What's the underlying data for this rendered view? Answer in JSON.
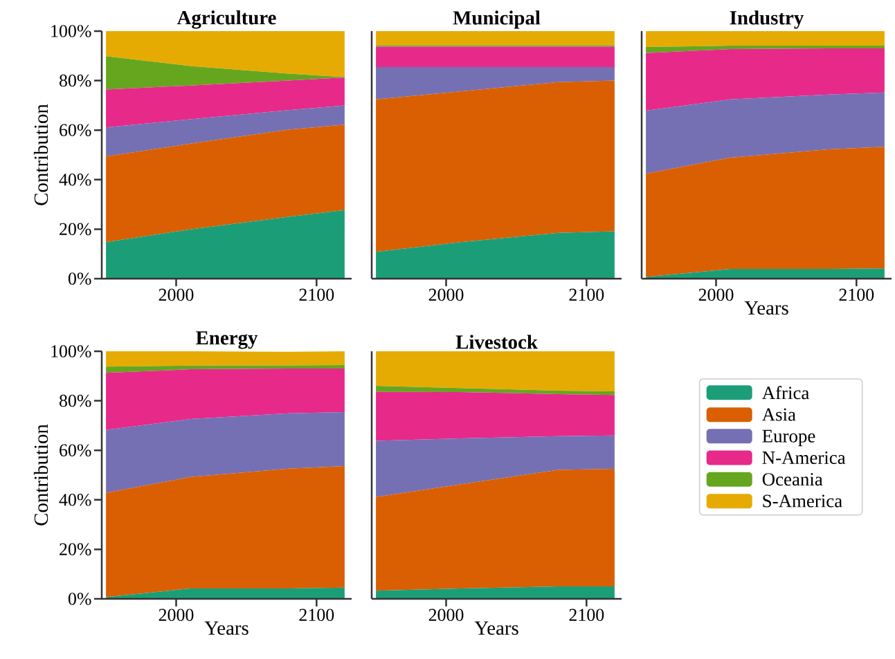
{
  "chart_data": [
    {
      "type": "area",
      "title": "Agriculture",
      "ylabel": "Contribution",
      "stacked": true,
      "x": [
        1950,
        2010,
        2080,
        2120
      ],
      "xlim": [
        1947,
        2125
      ],
      "xticks": [
        2000,
        2100
      ],
      "ylim": [
        0,
        100
      ],
      "yticks": [
        {
          "value": 0,
          "label": "0%"
        },
        {
          "value": 20,
          "label": "20%"
        },
        {
          "value": 40,
          "label": "40%"
        },
        {
          "value": 60,
          "label": "60%"
        },
        {
          "value": 80,
          "label": "80%"
        },
        {
          "value": 100,
          "label": "100%"
        }
      ],
      "series": [
        {
          "color": "#1b9e77",
          "values": [
            14.7,
            19.9,
            25.0,
            27.7
          ]
        },
        {
          "color": "#d95f02",
          "values": [
            34.7,
            34.6,
            35.2,
            34.5
          ]
        },
        {
          "color": "#7570b3",
          "values": [
            11.7,
            9.9,
            7.9,
            7.8
          ]
        },
        {
          "color": "#e7298a",
          "values": [
            15.3,
            13.6,
            11.9,
            11.3
          ]
        },
        {
          "color": "#66a61e",
          "values": [
            13.5,
            7.9,
            2.8,
            0.1
          ]
        },
        {
          "color": "#e6ab02",
          "values": [
            10.1,
            14.1,
            17.2,
            18.6
          ]
        }
      ]
    },
    {
      "type": "area",
      "title": "Municipal",
      "stacked": true,
      "tick_labels": "x",
      "x": [
        1950,
        2010,
        2080,
        2120
      ],
      "xlim": [
        1947,
        2125
      ],
      "xticks": [
        2000,
        2100
      ],
      "ylim": [
        0,
        100
      ],
      "series": [
        {
          "color": "#1b9e77",
          "values": [
            10.8,
            14.7,
            18.5,
            19.1
          ]
        },
        {
          "color": "#d95f02",
          "values": [
            61.6,
            60.9,
            60.9,
            60.9
          ]
        },
        {
          "color": "#7570b3",
          "values": [
            13.1,
            9.9,
            6.1,
            5.5
          ]
        },
        {
          "color": "#e7298a",
          "values": [
            8.2,
            8.2,
            8.2,
            8.2
          ]
        },
        {
          "color": "#66a61e",
          "values": [
            0.6,
            0.6,
            0.6,
            0.6
          ]
        },
        {
          "color": "#e6ab02",
          "values": [
            5.7,
            5.7,
            5.7,
            5.7
          ]
        }
      ]
    },
    {
      "type": "area",
      "title": "Industry",
      "xlabel": "Years",
      "stacked": true,
      "tick_labels": "x",
      "x": [
        1950,
        2010,
        2080,
        2120
      ],
      "xlim": [
        1947,
        2125
      ],
      "xticks": [
        2000,
        2100
      ],
      "ylim": [
        0,
        100
      ],
      "series": [
        {
          "color": "#1b9e77",
          "values": [
            0.7,
            3.9,
            3.9,
            4.1
          ]
        },
        {
          "color": "#d95f02",
          "values": [
            41.7,
            45.0,
            48.3,
            49.2
          ]
        },
        {
          "color": "#7570b3",
          "values": [
            25.5,
            23.5,
            22.2,
            21.9
          ]
        },
        {
          "color": "#e7298a",
          "values": [
            23.2,
            20.3,
            18.6,
            17.8
          ]
        },
        {
          "color": "#66a61e",
          "values": [
            2.5,
            1.4,
            1.1,
            1.1
          ]
        },
        {
          "color": "#e6ab02",
          "values": [
            6.4,
            5.9,
            5.9,
            5.9
          ]
        }
      ]
    },
    {
      "type": "area",
      "title": "Energy",
      "xlabel": "Years",
      "ylabel": "Contribution",
      "stacked": true,
      "x": [
        1950,
        2010,
        2080,
        2120
      ],
      "xlim": [
        1947,
        2125
      ],
      "xticks": [
        2000,
        2100
      ],
      "ylim": [
        0,
        100
      ],
      "yticks": [
        {
          "value": 0,
          "label": "0%"
        },
        {
          "value": 20,
          "label": "20%"
        },
        {
          "value": 40,
          "label": "40%"
        },
        {
          "value": 60,
          "label": "60%"
        },
        {
          "value": 80,
          "label": "80%"
        },
        {
          "value": 100,
          "label": "100%"
        }
      ],
      "series": [
        {
          "color": "#1b9e77",
          "values": [
            0.7,
            4.2,
            4.2,
            4.5
          ]
        },
        {
          "color": "#d95f02",
          "values": [
            42.1,
            45.0,
            48.4,
            49.1
          ]
        },
        {
          "color": "#7570b3",
          "values": [
            25.4,
            23.4,
            22.3,
            21.8
          ]
        },
        {
          "color": "#e7298a",
          "values": [
            23.1,
            20.1,
            18.1,
            17.6
          ]
        },
        {
          "color": "#66a61e",
          "values": [
            2.5,
            1.5,
            1.3,
            1.4
          ]
        },
        {
          "color": "#e6ab02",
          "values": [
            6.2,
            5.8,
            5.5,
            5.6
          ]
        }
      ]
    },
    {
      "type": "area",
      "title": "Livestock",
      "xlabel": "Years",
      "stacked": true,
      "tick_labels": "x",
      "legend": "right",
      "x": [
        1950,
        2010,
        2080,
        2120
      ],
      "xlim": [
        1947,
        2125
      ],
      "xticks": [
        2000,
        2100
      ],
      "ylim": [
        0,
        100
      ],
      "series": [
        {
          "name": "Africa",
          "color": "#1b9e77",
          "values": [
            3.3,
            4.2,
            5.0,
            5.0
          ]
        },
        {
          "name": "Asia",
          "color": "#d95f02",
          "values": [
            37.8,
            42.0,
            47.1,
            47.5
          ]
        },
        {
          "name": "Europe",
          "color": "#7570b3",
          "values": [
            22.7,
            18.6,
            13.6,
            13.5
          ]
        },
        {
          "name": "N-America",
          "color": "#e7298a",
          "values": [
            19.8,
            18.7,
            17.0,
            16.3
          ]
        },
        {
          "name": "Oceania",
          "color": "#66a61e",
          "values": [
            2.4,
            1.6,
            1.4,
            1.5
          ]
        },
        {
          "name": "S-America",
          "color": "#e6ab02",
          "values": [
            14.0,
            14.9,
            15.9,
            16.2
          ]
        }
      ]
    }
  ]
}
